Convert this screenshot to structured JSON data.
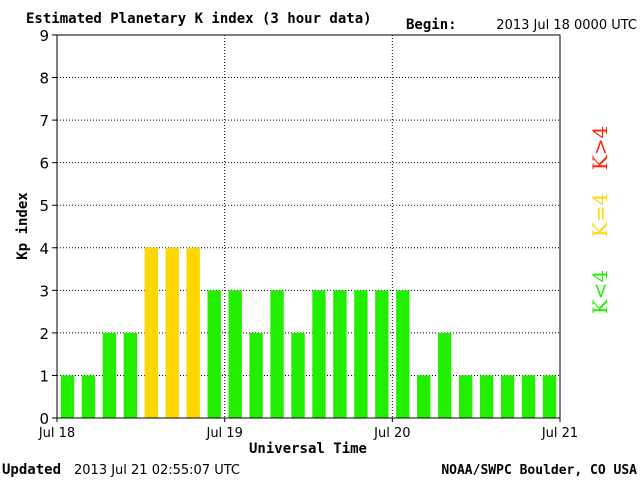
{
  "header": {
    "title": "Estimated Planetary K index (3 hour data)",
    "begin_label": "Begin:",
    "begin_value": "2013 Jul 18 0000 UTC"
  },
  "footer": {
    "updated_label": "Updated",
    "updated_value": "2013 Jul 21 02:55:07 UTC",
    "source": "NOAA/SWPC Boulder, CO USA"
  },
  "legend": [
    {
      "label": "K>4",
      "color": "#ff2200"
    },
    {
      "label": "K=4",
      "color": "#ffd700"
    },
    {
      "label": "K<4",
      "color": "#22ee00"
    }
  ],
  "chart_data": {
    "type": "bar",
    "title": "Estimated Planetary K index (3 hour data)",
    "xlabel": "Universal Time",
    "ylabel": "Kp index",
    "ylim": [
      0,
      9
    ],
    "yticks": [
      "0",
      "1",
      "2",
      "3",
      "4",
      "5",
      "6",
      "7",
      "8",
      "9"
    ],
    "xticks": [
      "Jul 18",
      "Jul 19",
      "Jul 20",
      "Jul 21"
    ],
    "interval_hours": 3,
    "values": [
      1,
      1,
      2,
      2,
      4,
      4,
      4,
      3,
      3,
      2,
      3,
      2,
      3,
      3,
      3,
      3,
      3,
      1,
      2,
      1,
      1,
      1,
      1,
      1
    ],
    "colors": {
      "below_4": "#22ee00",
      "equal_4": "#ffd700",
      "above_4": "#ff2200"
    },
    "grid": "dotted"
  }
}
